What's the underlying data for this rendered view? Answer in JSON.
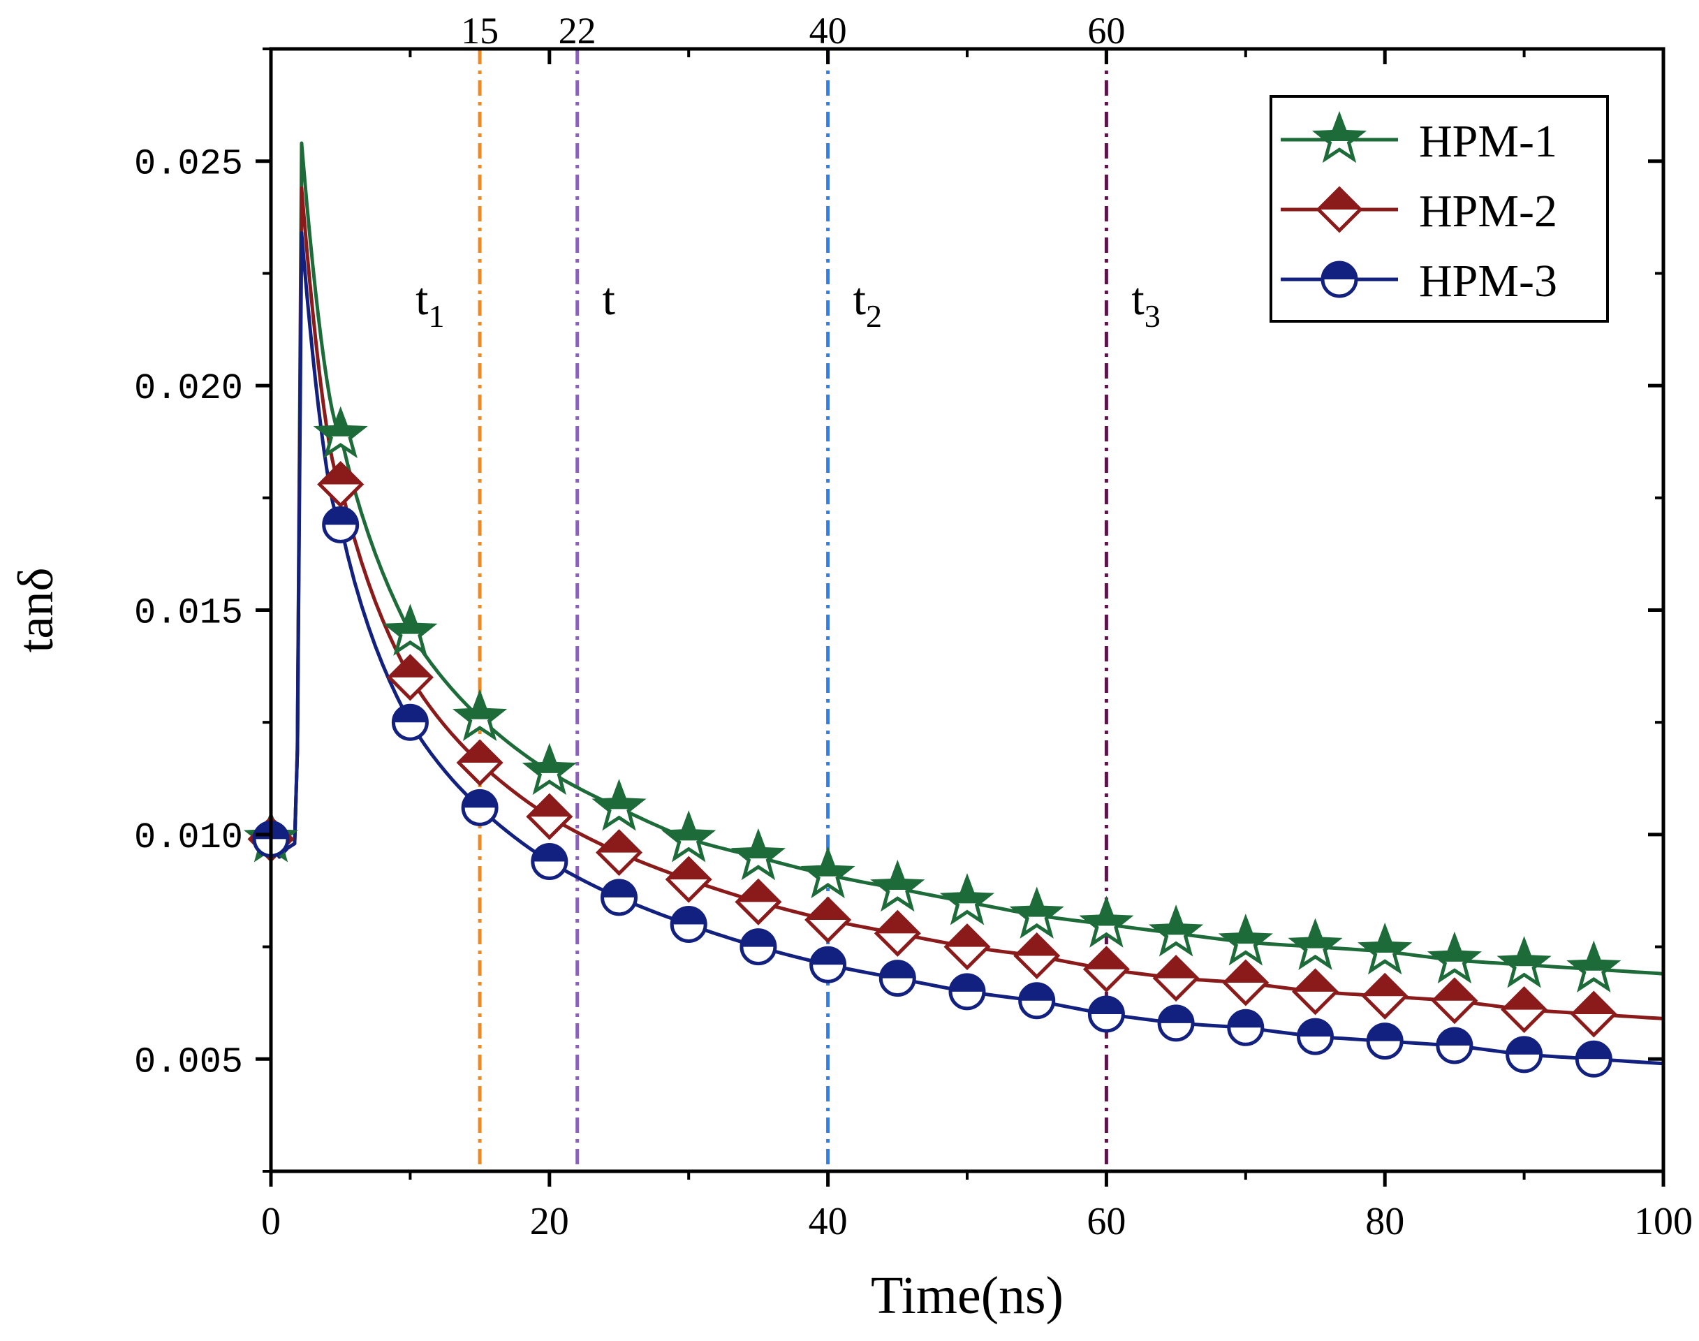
{
  "chart_data": {
    "type": "line",
    "xlabel": "Time(ns)",
    "ylabel": "tanδ",
    "xlim": [
      0,
      100
    ],
    "ylim": [
      0.0025,
      0.0275
    ],
    "x_ticks": [
      0,
      20,
      40,
      60,
      80,
      100
    ],
    "x_tick_labels": [
      "0",
      "20",
      "40",
      "60",
      "80",
      "100"
    ],
    "y_ticks": [
      0.005,
      0.01,
      0.015,
      0.02,
      0.025
    ],
    "y_tick_labels": [
      "0.005",
      "0.010",
      "0.015",
      "0.020",
      "0.025"
    ],
    "grid": false,
    "legend_position": "top-right",
    "markers_x": [
      0,
      5,
      10,
      15,
      20,
      25,
      30,
      35,
      40,
      45,
      50,
      55,
      60,
      65,
      70,
      75,
      80,
      85,
      90,
      95
    ],
    "series": [
      {
        "name": "HPM-1",
        "color": "#1e6b3a",
        "marker": "star",
        "peak": 0.0254,
        "values": [
          0.0099,
          0.0189,
          0.0145,
          0.0126,
          0.0114,
          0.0106,
          0.0099,
          0.0095,
          0.0091,
          0.0088,
          0.0085,
          0.0082,
          0.008,
          0.0078,
          0.0076,
          0.0075,
          0.0074,
          0.0072,
          0.0071,
          0.007
        ],
        "end_value": 0.0069
      },
      {
        "name": "HPM-2",
        "color": "#8b1b1b",
        "marker": "diamond",
        "peak": 0.0244,
        "values": [
          0.0099,
          0.0178,
          0.0135,
          0.0116,
          0.0104,
          0.0096,
          0.009,
          0.0085,
          0.0081,
          0.0078,
          0.0075,
          0.0073,
          0.007,
          0.0068,
          0.0067,
          0.0065,
          0.0064,
          0.0063,
          0.0061,
          0.006
        ],
        "end_value": 0.0059
      },
      {
        "name": "HPM-3",
        "color": "#12207f",
        "marker": "half-circle",
        "peak": 0.0234,
        "values": [
          0.0099,
          0.0169,
          0.0125,
          0.0106,
          0.0094,
          0.0086,
          0.008,
          0.0075,
          0.0071,
          0.0068,
          0.0065,
          0.0063,
          0.006,
          0.0058,
          0.0057,
          0.0055,
          0.0054,
          0.0053,
          0.0051,
          0.005
        ],
        "end_value": 0.0049
      }
    ],
    "reference_lines": [
      {
        "x": 15,
        "top_label": "15",
        "label": "t",
        "subscript": "1",
        "color": "#f0891f",
        "label_side": "left"
      },
      {
        "x": 22,
        "top_label": "22",
        "label": "t",
        "subscript": "",
        "color": "#8a63b8",
        "label_side": "right"
      },
      {
        "x": 40,
        "top_label": "40",
        "label": "t",
        "subscript": "2",
        "color": "#2f7fe6",
        "label_side": "right"
      },
      {
        "x": 60,
        "top_label": "60",
        "label": "t",
        "subscript": "3",
        "color": "#5c1548",
        "label_side": "right"
      }
    ]
  }
}
